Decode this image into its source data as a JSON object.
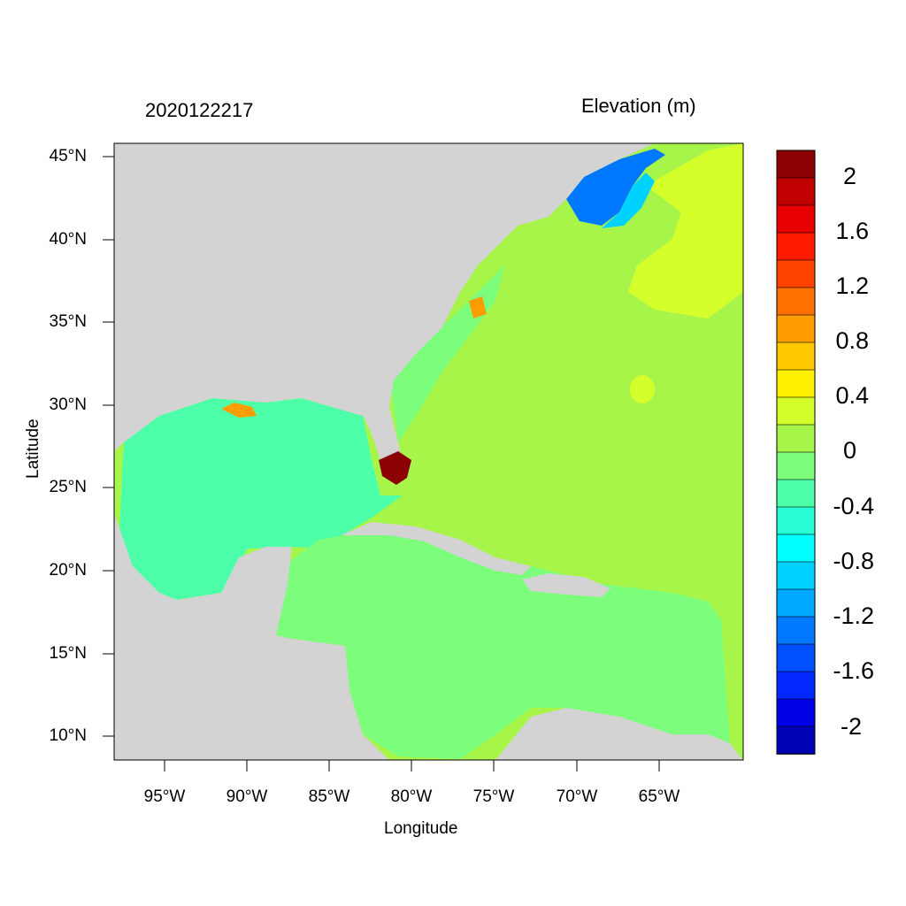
{
  "map": {
    "timestamp": "2020122217",
    "variable": "Elevation (m)",
    "xlabel": "Longitude",
    "ylabel": "Latitude",
    "lat_ticks": [
      "45°N",
      "40°N",
      "35°N",
      "30°N",
      "25°N",
      "20°N",
      "15°N",
      "10°N"
    ],
    "lon_ticks": [
      "95°W",
      "90°W",
      "85°W",
      "80°W",
      "75°W",
      "70°W",
      "65°W"
    ],
    "extent": {
      "lon": [
        -98,
        -60
      ],
      "lat": [
        8.5,
        46
      ]
    },
    "land_color": "#d3d3d3",
    "ocean_base_color": "#a8f54a"
  },
  "colorbar": {
    "labels": [
      "2",
      "1.6",
      "1.2",
      "0.8",
      "0.4",
      "0",
      "-0.4",
      "-0.8",
      "-1.2",
      "-1.6",
      "-2"
    ],
    "colors": [
      "#8b0000",
      "#c00000",
      "#e80000",
      "#ff1a00",
      "#ff4400",
      "#ff7000",
      "#ff9c00",
      "#ffc800",
      "#fff000",
      "#d4ff2a",
      "#a8f54a",
      "#7cfd7c",
      "#4dffa8",
      "#28ffd4",
      "#00ffff",
      "#00d2ff",
      "#00a8ff",
      "#0078ff",
      "#0050ff",
      "#0028ff",
      "#0000e6",
      "#0000b4"
    ]
  }
}
